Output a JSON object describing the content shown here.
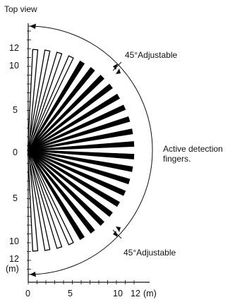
{
  "title": "Top view",
  "annotations": {
    "adjust_top": "45°Adjustable",
    "adjust_bottom": "45°Adjustable",
    "detection_line1": "Active detection",
    "detection_line2": "fingers."
  },
  "y_axis": {
    "ticks_upper": [
      "12",
      "10",
      "5",
      "0"
    ],
    "ticks_lower": [
      "5",
      "10",
      "12"
    ],
    "unit": "(m)"
  },
  "x_axis": {
    "ticks": [
      "0",
      "5",
      "10",
      "12"
    ],
    "unit": "(m)"
  },
  "fingers": {
    "count": 26,
    "outline_style": "outer fingers near the vertical axis are drawn hollow; inner fingers are solid black",
    "color": "#000000"
  }
}
